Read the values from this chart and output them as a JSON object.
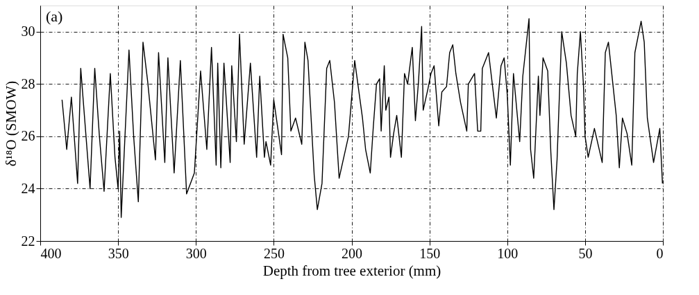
{
  "chart_data": {
    "type": "line",
    "xlabel": "Depth from tree exterior (mm)",
    "ylabel": "δ¹⁸O (SMOW)",
    "annotations": [
      "(a)"
    ],
    "xlim": [
      400,
      0
    ],
    "xticks": [
      400,
      350,
      300,
      250,
      200,
      150,
      100,
      50,
      0
    ],
    "ylim": [
      22,
      31
    ],
    "yticks": [
      22,
      24,
      26,
      28,
      30
    ],
    "grid": true,
    "line_style": "solid",
    "marker": "none",
    "series": [
      {
        "color": "#000000",
        "x": [
          386,
          383,
          380,
          376,
          374,
          368,
          365,
          362,
          359,
          355,
          352,
          350,
          349,
          348,
          343,
          340,
          337,
          334,
          331,
          326,
          324,
          320,
          318,
          314,
          310,
          306,
          301,
          297,
          293,
          290,
          287,
          286,
          284,
          282,
          278,
          277,
          274,
          272,
          269,
          265,
          261,
          259,
          256,
          255,
          252,
          250,
          245,
          244,
          241,
          239,
          236,
          232,
          230,
          228,
          224,
          222,
          219,
          216,
          214,
          211,
          208,
          202,
          198,
          193,
          191,
          188,
          186,
          184,
          182,
          181,
          179,
          178,
          176,
          175,
          173,
          171,
          168,
          166,
          164,
          161,
          159,
          157,
          155,
          154,
          151,
          149,
          147,
          144,
          142,
          139,
          137,
          135,
          133,
          130,
          126,
          125,
          121,
          119,
          117,
          116,
          112,
          109,
          107,
          104,
          102,
          100,
          98,
          96,
          92,
          90,
          88,
          86,
          85,
          83,
          80,
          79,
          77,
          74,
          72,
          70,
          68,
          65,
          62,
          59,
          56,
          55,
          53,
          51,
          50,
          48,
          44,
          39,
          37,
          35,
          30,
          28,
          26,
          23,
          20,
          18,
          14,
          12,
          10,
          6,
          2,
          0.3
        ],
        "values": [
          27.4,
          25.5,
          27.5,
          24.2,
          28.6,
          24.0,
          28.6,
          26.0,
          23.9,
          28.4,
          25.2,
          24.0,
          26.2,
          22.9,
          29.3,
          26.0,
          23.5,
          29.6,
          28.1,
          25.1,
          29.2,
          25.0,
          29.0,
          24.6,
          28.9,
          23.8,
          24.6,
          28.5,
          25.5,
          29.4,
          24.9,
          28.8,
          24.8,
          28.8,
          25.0,
          28.7,
          25.8,
          29.9,
          25.7,
          28.8,
          25.2,
          28.3,
          25.2,
          25.8,
          24.9,
          27.4,
          25.3,
          29.9,
          29.0,
          26.2,
          26.7,
          25.7,
          29.6,
          28.9,
          24.5,
          23.2,
          24.2,
          28.6,
          28.9,
          27.3,
          24.4,
          26.0,
          28.9,
          26.7,
          25.5,
          24.6,
          26.4,
          28.0,
          28.2,
          26.2,
          28.7,
          27.0,
          27.5,
          25.2,
          26.1,
          26.8,
          25.2,
          28.4,
          28.0,
          29.4,
          26.6,
          28.1,
          30.2,
          27.0,
          27.8,
          28.4,
          28.7,
          26.4,
          27.7,
          27.9,
          29.2,
          29.5,
          28.4,
          27.3,
          26.2,
          28.0,
          28.4,
          26.2,
          26.2,
          28.6,
          29.2,
          27.7,
          26.7,
          28.7,
          29.0,
          27.6,
          24.9,
          28.4,
          25.8,
          28.3,
          29.4,
          30.5,
          25.5,
          24.4,
          28.3,
          26.8,
          29.0,
          28.5,
          25.4,
          23.2,
          25.1,
          30.0,
          28.8,
          26.8,
          26.0,
          28.4,
          30.0,
          27.9,
          26.0,
          25.2,
          26.3,
          25.0,
          29.2,
          29.6,
          26.8,
          24.8,
          26.7,
          26.1,
          24.9,
          29.2,
          30.4,
          29.6,
          26.7,
          25.0,
          26.3,
          24.2
        ]
      }
    ]
  }
}
